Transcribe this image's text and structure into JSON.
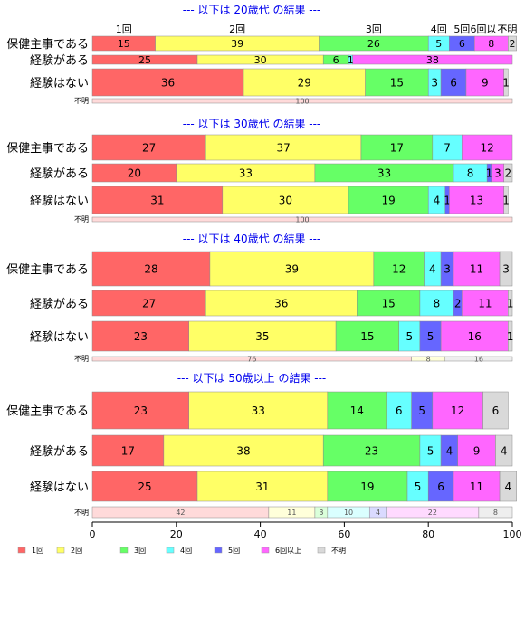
{
  "chart_data": {
    "type": "bar",
    "orientation": "horizontal",
    "stacked": true,
    "percent": true,
    "xlim": [
      0,
      100
    ],
    "x_ticks": [
      "0",
      "20",
      "40",
      "60",
      "80",
      "100"
    ],
    "top_category_labels": [
      "1回",
      "2回",
      "3回",
      "4回",
      "5回",
      "6回以上",
      "不明"
    ],
    "legend_position": "bottom-left",
    "series": [
      {
        "name": "1回",
        "color": "#FF6666"
      },
      {
        "name": "2回",
        "color": "#FFFF66"
      },
      {
        "name": "3回",
        "color": "#66FF66"
      },
      {
        "name": "4回",
        "color": "#66FFFF"
      },
      {
        "name": "5回",
        "color": "#6666FF"
      },
      {
        "name": "6回以上",
        "color": "#FF66FF"
      },
      {
        "name": "不明",
        "color": "#D9D9D9"
      }
    ],
    "groups": [
      {
        "title": "--- 以下は 20歳代 の結果 ---",
        "rows": [
          {
            "label": "保健主事である",
            "values": [
              15,
              39,
              26,
              5,
              6,
              8,
              2
            ]
          },
          {
            "label": "経験がある",
            "values": [
              25,
              30,
              6,
              1,
              0,
              38,
              0
            ]
          },
          {
            "label": "経験はない",
            "values": [
              36,
              29,
              15,
              3,
              6,
              9,
              1
            ]
          }
        ],
        "unknown": {
          "label": "不明",
          "values": [
            100,
            0,
            0,
            0,
            0,
            0,
            0
          ]
        }
      },
      {
        "title": "--- 以下は 30歳代 の結果 ---",
        "rows": [
          {
            "label": "保健主事である",
            "values": [
              27,
              37,
              17,
              7,
              0,
              12,
              0
            ]
          },
          {
            "label": "経験がある",
            "values": [
              20,
              33,
              33,
              8,
              1,
              3,
              2
            ]
          },
          {
            "label": "経験はない",
            "values": [
              31,
              30,
              19,
              4,
              1,
              13,
              1
            ]
          }
        ],
        "unknown": {
          "label": "不明",
          "values": [
            100,
            0,
            0,
            0,
            0,
            0,
            0
          ]
        }
      },
      {
        "title": "--- 以下は 40歳代 の結果 ---",
        "rows": [
          {
            "label": "保健主事である",
            "values": [
              28,
              39,
              12,
              4,
              3,
              11,
              3
            ]
          },
          {
            "label": "経験がある",
            "values": [
              27,
              36,
              15,
              8,
              2,
              11,
              1
            ]
          },
          {
            "label": "経験はない",
            "values": [
              23,
              35,
              15,
              5,
              5,
              16,
              1
            ]
          }
        ],
        "unknown": {
          "label": "不明",
          "values": [
            76,
            8,
            0,
            0,
            0,
            0,
            16
          ]
        }
      },
      {
        "title": "--- 以下は 50歳以上 の結果 ---",
        "rows": [
          {
            "label": "保健主事である",
            "values": [
              23,
              33,
              14,
              6,
              5,
              12,
              6
            ]
          },
          {
            "label": "経験がある",
            "values": [
              17,
              38,
              23,
              5,
              4,
              9,
              4
            ]
          },
          {
            "label": "経験はない",
            "values": [
              25,
              31,
              19,
              5,
              6,
              11,
              4
            ]
          }
        ],
        "unknown": {
          "label": "不明",
          "values": [
            42,
            11,
            3,
            10,
            4,
            22,
            8
          ]
        }
      }
    ]
  }
}
